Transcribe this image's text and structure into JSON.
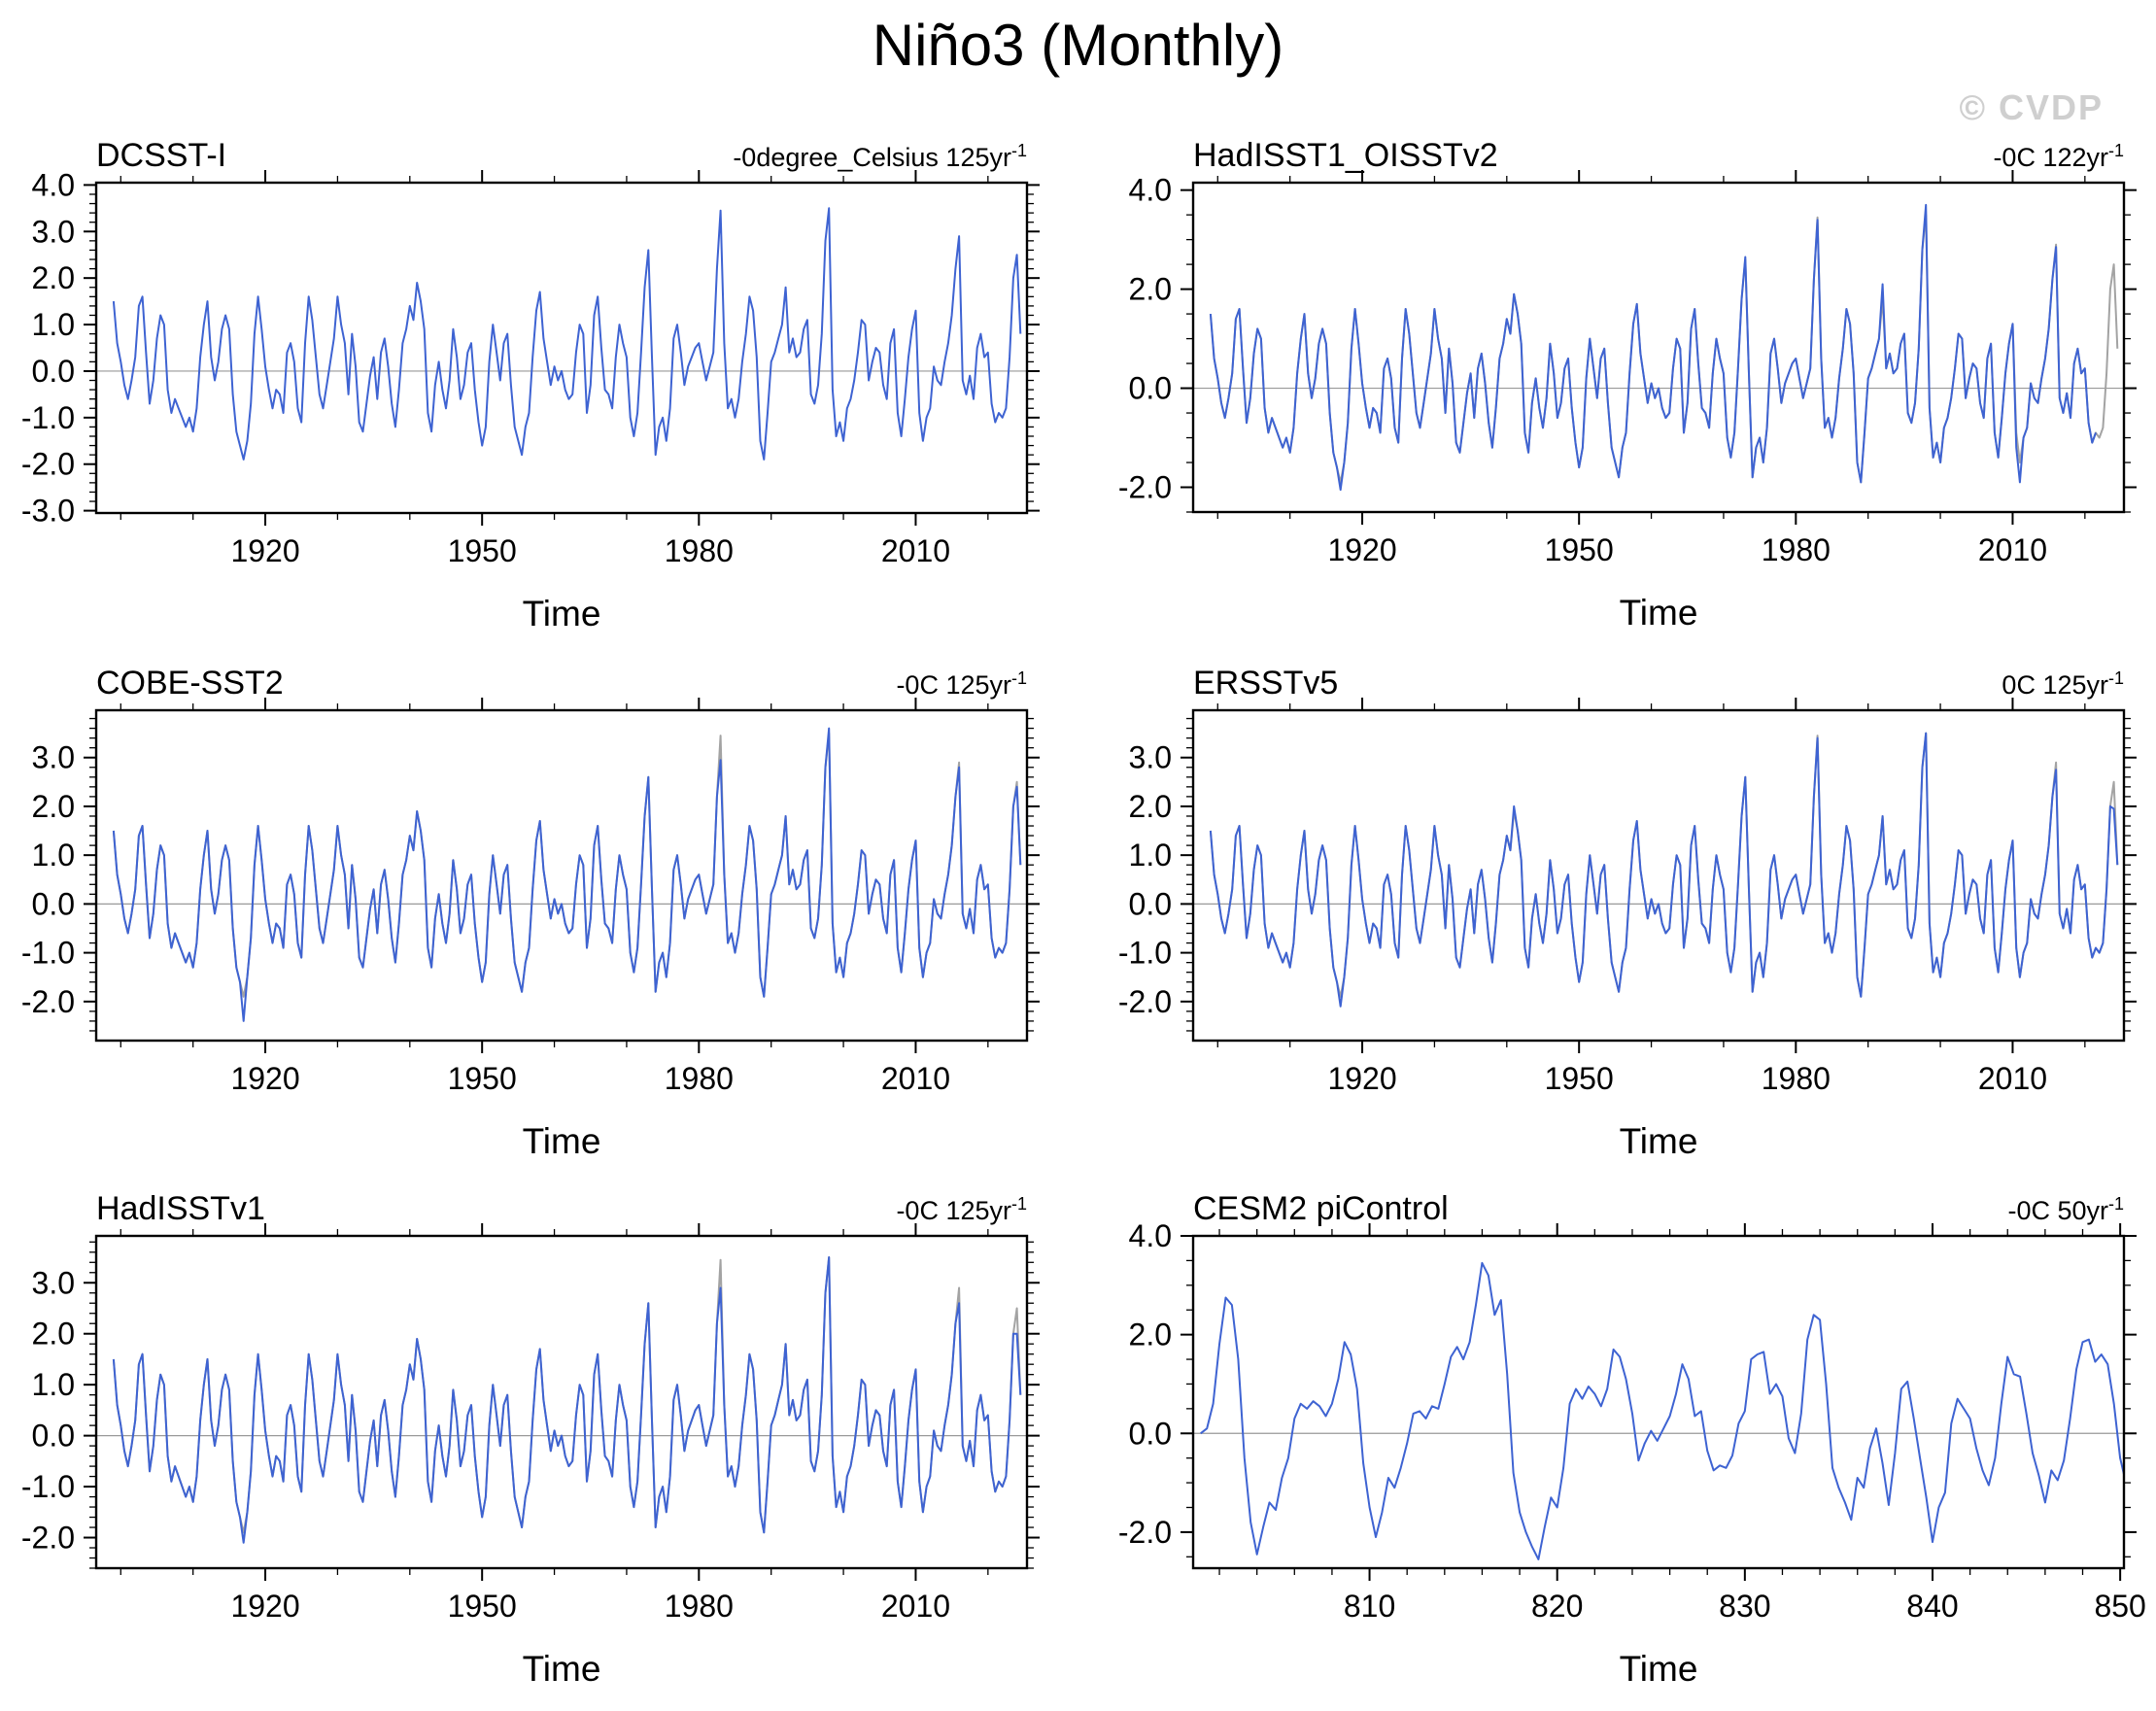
{
  "page_title": "Niño3 (Monthly)",
  "watermark": "© CVDP",
  "colors": {
    "primary_line": "#3E63D2",
    "reference_line": "#A3A3A3",
    "zero_line": "#999999",
    "axis": "#000000",
    "watermark": "#CFCFCF"
  },
  "base_series": {
    "name": "DCSST-I",
    "x_start": 1899,
    "x_step": 0.5,
    "values": [
      1.5,
      0.6,
      0.2,
      -0.3,
      -0.6,
      -0.2,
      0.3,
      1.4,
      1.6,
      0.4,
      -0.7,
      -0.2,
      0.7,
      1.2,
      1.0,
      -0.4,
      -0.9,
      -0.6,
      -0.8,
      -1.0,
      -1.2,
      -1.0,
      -1.3,
      -0.8,
      0.3,
      1.0,
      1.5,
      0.3,
      -0.2,
      0.2,
      0.9,
      1.2,
      0.9,
      -0.5,
      -1.3,
      -1.6,
      -1.9,
      -1.5,
      -0.7,
      0.8,
      1.6,
      0.9,
      0.1,
      -0.4,
      -0.8,
      -0.4,
      -0.5,
      -0.9,
      0.4,
      0.6,
      0.2,
      -0.8,
      -1.1,
      0.6,
      1.6,
      1.1,
      0.3,
      -0.5,
      -0.8,
      -0.3,
      0.2,
      0.7,
      1.6,
      1.0,
      0.6,
      -0.5,
      0.8,
      0.1,
      -1.1,
      -1.3,
      -0.7,
      -0.1,
      0.3,
      -0.6,
      0.4,
      0.7,
      0.1,
      -0.7,
      -1.2,
      -0.4,
      0.6,
      0.9,
      1.4,
      1.1,
      1.9,
      1.5,
      0.9,
      -0.9,
      -1.3,
      -0.3,
      0.2,
      -0.4,
      -0.8,
      -0.2,
      0.9,
      0.3,
      -0.6,
      -0.3,
      0.4,
      0.6,
      -0.4,
      -1.1,
      -1.6,
      -1.2,
      0.2,
      1.0,
      0.4,
      -0.2,
      0.6,
      0.8,
      -0.3,
      -1.2,
      -1.5,
      -1.8,
      -1.2,
      -0.9,
      0.3,
      1.3,
      1.7,
      0.7,
      0.2,
      -0.3,
      0.1,
      -0.2,
      0.0,
      -0.4,
      -0.6,
      -0.5,
      0.4,
      1.0,
      0.8,
      -0.9,
      -0.3,
      1.2,
      1.6,
      0.5,
      -0.4,
      -0.5,
      -0.8,
      0.3,
      1.0,
      0.6,
      0.3,
      -1.0,
      -1.4,
      -0.9,
      0.4,
      1.8,
      2.6,
      0.3,
      -1.8,
      -1.2,
      -1.0,
      -1.5,
      -0.8,
      0.7,
      1.0,
      0.4,
      -0.3,
      0.1,
      0.3,
      0.5,
      0.6,
      0.2,
      -0.2,
      0.1,
      0.4,
      2.2,
      3.45,
      0.6,
      -0.8,
      -0.6,
      -1.0,
      -0.6,
      0.2,
      0.8,
      1.6,
      1.3,
      0.3,
      -1.5,
      -1.9,
      -0.9,
      0.2,
      0.4,
      0.7,
      1.0,
      1.8,
      0.4,
      0.7,
      0.3,
      0.4,
      0.9,
      1.1,
      -0.5,
      -0.7,
      -0.3,
      0.8,
      2.8,
      3.5,
      -0.4,
      -1.4,
      -1.1,
      -1.5,
      -0.8,
      -0.6,
      -0.2,
      0.4,
      1.1,
      1.0,
      -0.2,
      0.2,
      0.5,
      0.4,
      -0.3,
      -0.6,
      0.6,
      0.9,
      -0.9,
      -1.4,
      -0.6,
      0.3,
      0.9,
      1.3,
      -0.9,
      -1.5,
      -1.0,
      -0.8,
      0.1,
      -0.2,
      -0.3,
      0.2,
      0.6,
      1.2,
      2.2,
      2.9,
      -0.2,
      -0.5,
      -0.1,
      -0.6,
      0.5,
      0.8,
      0.3,
      0.4,
      -0.7,
      -1.1,
      -0.9,
      -1.0,
      -0.8,
      0.3,
      2.0,
      2.5,
      0.8
    ]
  },
  "chart_data": [
    {
      "type": "line",
      "name": "DCSST-I",
      "trend_value": "-0degree_Celsius 125yr",
      "trend_sup": "-1",
      "xlabel": "Time",
      "xticks": [
        1920,
        1950,
        1980,
        2010
      ],
      "x_minor_step": 10,
      "xlim": [
        1896.6,
        2025.4
      ],
      "yticks": [
        4.0,
        3.0,
        2.0,
        1.0,
        0.0,
        -1.0,
        -2.0,
        -3.0
      ],
      "y_minor_step": 0.2,
      "ylim": [
        -3.05,
        4.05
      ],
      "legend_position": "none",
      "grid": false,
      "series": [
        {
          "role": "primary",
          "from_base": true
        }
      ]
    },
    {
      "type": "line",
      "name": "HadISST1_OISSTv2",
      "trend_value": "-0C 122yr",
      "trend_sup": "-1",
      "xlabel": "Time",
      "xticks": [
        1920,
        1950,
        1980,
        2010
      ],
      "x_minor_step": 10,
      "xlim": [
        1896.6,
        2025.4
      ],
      "yticks": [
        4.0,
        2.0,
        0.0,
        -2.0
      ],
      "y_minor_step": 0.5,
      "ylim": [
        -2.5,
        4.15
      ],
      "legend_position": "none",
      "grid": false,
      "series": [
        {
          "role": "reference",
          "from_base": true
        },
        {
          "role": "primary",
          "from_base": true,
          "end_index": 246,
          "overrides": {
            "36": -2.05,
            "148": 2.65,
            "168": 3.4,
            "186": 2.1,
            "198": 3.7,
            "223": -1.2,
            "224": -1.9,
            "234": 2.85
          }
        }
      ]
    },
    {
      "type": "line",
      "name": "COBE-SST2",
      "trend_value": "-0C 125yr",
      "trend_sup": "-1",
      "xlabel": "Time",
      "xticks": [
        1920,
        1950,
        1980,
        2010
      ],
      "x_minor_step": 10,
      "xlim": [
        1896.6,
        2025.4
      ],
      "yticks": [
        3.0,
        2.0,
        1.0,
        0.0,
        -1.0,
        -2.0
      ],
      "y_minor_step": 0.2,
      "ylim": [
        -2.8,
        3.97
      ],
      "legend_position": "none",
      "grid": false,
      "series": [
        {
          "role": "reference",
          "from_base": true
        },
        {
          "role": "primary",
          "from_base": true,
          "overrides": {
            "36": -2.4,
            "168": 2.95,
            "198": 3.6,
            "234": 2.8,
            "250": 2.4
          }
        }
      ]
    },
    {
      "type": "line",
      "name": "ERSSTv5",
      "trend_value": "0C 125yr",
      "trend_sup": "-1",
      "xlabel": "Time",
      "xticks": [
        1920,
        1950,
        1980,
        2010
      ],
      "x_minor_step": 10,
      "xlim": [
        1896.6,
        2025.4
      ],
      "yticks": [
        3.0,
        2.0,
        1.0,
        0.0,
        -1.0,
        -2.0
      ],
      "y_minor_step": 0.2,
      "ylim": [
        -2.8,
        3.97
      ],
      "legend_position": "none",
      "grid": false,
      "series": [
        {
          "role": "reference",
          "from_base": true
        },
        {
          "role": "primary",
          "from_base": true,
          "overrides": {
            "36": -2.1,
            "84": 2.0,
            "168": 3.4,
            "198": 3.5,
            "234": 2.75,
            "250": 1.95
          }
        }
      ]
    },
    {
      "type": "line",
      "name": "HadISSTv1",
      "trend_value": "-0C 125yr",
      "trend_sup": "-1",
      "xlabel": "Time",
      "xticks": [
        1920,
        1950,
        1980,
        2010
      ],
      "x_minor_step": 10,
      "xlim": [
        1896.6,
        2025.4
      ],
      "yticks": [
        3.0,
        2.0,
        1.0,
        0.0,
        -1.0,
        -2.0
      ],
      "y_minor_step": 0.2,
      "ylim": [
        -2.6,
        3.92
      ],
      "legend_position": "none",
      "grid": false,
      "series": [
        {
          "role": "reference",
          "from_base": true
        },
        {
          "role": "primary",
          "from_base": true,
          "overrides": {
            "36": -2.1,
            "168": 2.9,
            "198": 3.5,
            "234": 2.6,
            "250": 2.0
          }
        }
      ]
    },
    {
      "type": "line",
      "name": "CESM2 piControl",
      "trend_value": "-0C 50yr",
      "trend_sup": "-1",
      "xlabel": "Time",
      "xticks": [
        810,
        820,
        830,
        840,
        850
      ],
      "x_minor_step": 2,
      "xlim": [
        800.6,
        850.2
      ],
      "yticks": [
        4.0,
        2.0,
        0.0,
        -2.0
      ],
      "y_minor_step": 0.5,
      "ylim": [
        -2.73,
        4.0
      ],
      "legend_position": "none",
      "grid": false,
      "series": [
        {
          "role": "primary",
          "x_start": 801,
          "x_step": 0.333333,
          "values": [
            0.0,
            0.1,
            0.6,
            1.8,
            2.75,
            2.6,
            1.5,
            -0.5,
            -1.8,
            -2.45,
            -1.9,
            -1.4,
            -1.55,
            -0.9,
            -0.5,
            0.3,
            0.6,
            0.5,
            0.65,
            0.55,
            0.35,
            0.6,
            1.1,
            1.85,
            1.6,
            0.9,
            -0.6,
            -1.5,
            -2.1,
            -1.6,
            -0.9,
            -1.1,
            -0.7,
            -0.2,
            0.4,
            0.45,
            0.3,
            0.55,
            0.5,
            1.0,
            1.55,
            1.75,
            1.5,
            1.85,
            2.6,
            3.45,
            3.2,
            2.4,
            2.7,
            1.2,
            -0.8,
            -1.6,
            -2.0,
            -2.3,
            -2.55,
            -1.9,
            -1.3,
            -1.5,
            -0.7,
            0.6,
            0.9,
            0.7,
            0.95,
            0.8,
            0.55,
            0.9,
            1.7,
            1.55,
            1.1,
            0.4,
            -0.55,
            -0.2,
            0.05,
            -0.15,
            0.1,
            0.35,
            0.8,
            1.4,
            1.1,
            0.35,
            0.45,
            -0.35,
            -0.75,
            -0.65,
            -0.7,
            -0.45,
            0.2,
            0.45,
            1.5,
            1.6,
            1.65,
            0.8,
            1.0,
            0.75,
            -0.1,
            -0.4,
            0.4,
            1.9,
            2.4,
            2.3,
            1.0,
            -0.7,
            -1.1,
            -1.4,
            -1.75,
            -0.9,
            -1.1,
            -0.3,
            0.1,
            -0.6,
            -1.45,
            -0.4,
            0.9,
            1.05,
            0.3,
            -0.5,
            -1.3,
            -2.2,
            -1.5,
            -1.2,
            0.2,
            0.7,
            0.5,
            0.3,
            -0.3,
            -0.75,
            -1.05,
            -0.5,
            0.6,
            1.55,
            1.2,
            1.15,
            0.4,
            -0.4,
            -0.85,
            -1.4,
            -0.75,
            -0.95,
            -0.55,
            0.3,
            1.3,
            1.85,
            1.9,
            1.45,
            1.6,
            1.4,
            0.6,
            -0.5,
            -1.05
          ]
        }
      ]
    }
  ]
}
